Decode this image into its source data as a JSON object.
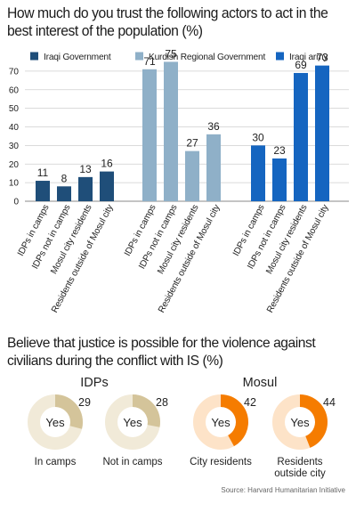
{
  "title": "How much do you trust the following actors to act in the best interest of the population (%)",
  "chart_data": [
    {
      "type": "bar",
      "title": "How much do you trust the following actors to act in the best interest of the population (%)",
      "categories": [
        "IDPs in camps",
        "IDPs not in camps",
        "Mosul city residents",
        "Residents outside of Mosul city"
      ],
      "series": [
        {
          "name": "Iraqi Government",
          "color": "#1f4e79",
          "values": [
            11,
            8,
            13,
            16
          ]
        },
        {
          "name": "Kurdish Regional Government",
          "color": "#8fb0c8",
          "values": [
            71,
            75,
            27,
            36
          ]
        },
        {
          "name": "Iraqi army",
          "color": "#1565c0",
          "values": [
            30,
            23,
            69,
            73
          ]
        }
      ],
      "y_ticks": [
        0,
        10,
        20,
        30,
        40,
        50,
        60,
        70
      ],
      "ylim": [
        0,
        80
      ],
      "grid": true,
      "legend": "top"
    },
    {
      "type": "pie",
      "title": "Believe that justice is possible for the violence against civilians during the conflict with IS (%)",
      "center_label": "Yes",
      "groups": [
        {
          "name": "IDPs",
          "fill_color": "#d4c49a",
          "rest_color": "#f1ead8",
          "items": [
            {
              "label": "In camps",
              "value": 29
            },
            {
              "label": "Not in camps",
              "value": 28
            }
          ]
        },
        {
          "name": "Mosul",
          "fill_color": "#f57c00",
          "rest_color": "#fde3c8",
          "items": [
            {
              "label": "City residents",
              "value": 42
            },
            {
              "label": "Residents outside city",
              "value": 44
            }
          ]
        }
      ]
    }
  ],
  "title2": "Believe that justice is possible for the violence against civilians during the conflict with IS (%)",
  "source": "Source: Harvard Humanitarian Initiative"
}
